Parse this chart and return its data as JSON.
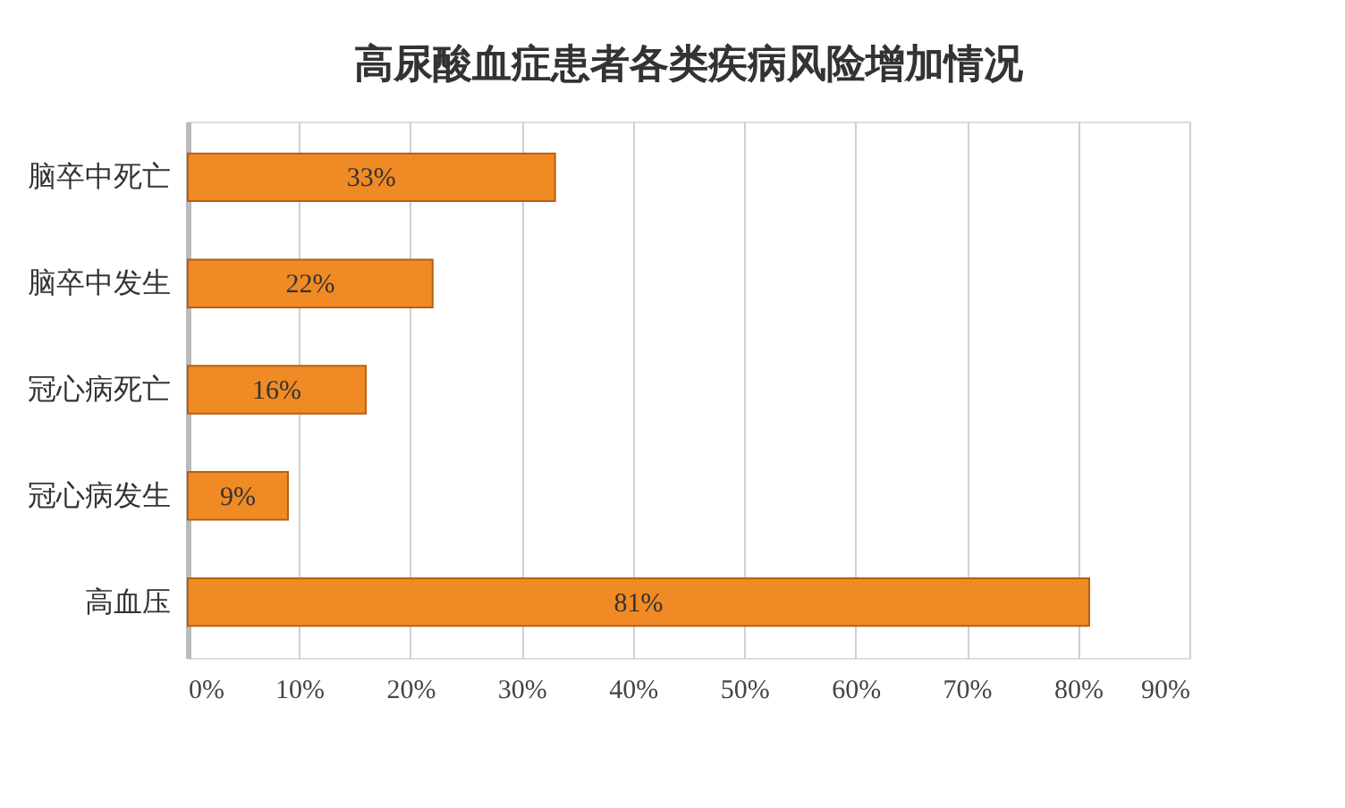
{
  "chart_data": {
    "type": "bar",
    "orientation": "horizontal",
    "title": "高尿酸血症患者各类疾病风险增加情况",
    "categories": [
      "脑卒中死亡",
      "脑卒中发生",
      "冠心病死亡",
      "冠心病发生",
      "高血压"
    ],
    "values": [
      33,
      22,
      16,
      9,
      81
    ],
    "color": "#f08a24",
    "value_labels": [
      "33%",
      "22%",
      "16%",
      "9%",
      "81%"
    ],
    "xlim": [
      0,
      90
    ],
    "xticks": [
      {
        "value": 0,
        "label": "0%"
      },
      {
        "value": 10,
        "label": "10%"
      },
      {
        "value": 20,
        "label": "20%"
      },
      {
        "value": 30,
        "label": "30%"
      },
      {
        "value": 40,
        "label": "40%"
      },
      {
        "value": 50,
        "label": "50%"
      },
      {
        "value": 60,
        "label": "60%"
      },
      {
        "value": 70,
        "label": "70%"
      },
      {
        "value": 80,
        "label": "80%"
      },
      {
        "value": 90,
        "label": "90%"
      }
    ],
    "grid": "x"
  }
}
